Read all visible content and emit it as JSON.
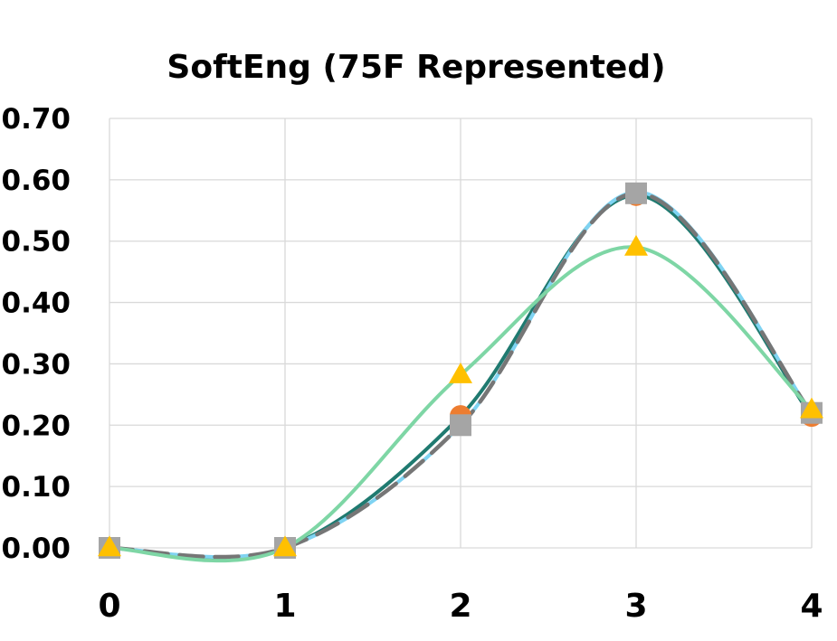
{
  "chart_data": {
    "type": "line",
    "title": "SoftEng (75F Represented)",
    "xlabel": "",
    "ylabel": "",
    "x": [
      0,
      1,
      2,
      3,
      4
    ],
    "xlim": [
      0,
      4
    ],
    "ylim": [
      0,
      0.7
    ],
    "x_ticks": [
      "0",
      "1",
      "2",
      "3",
      "4"
    ],
    "y_ticks": [
      "0.00",
      "0.10",
      "0.20",
      "0.30",
      "0.40",
      "0.50",
      "0.60",
      "0.70"
    ],
    "grid": true,
    "legend": "none",
    "smooth": true,
    "series": [
      {
        "marker": "circle",
        "color": "#ED7D31",
        "line_color": "#1F7A70",
        "line_style": "solid",
        "values": [
          0,
          0,
          0.215,
          0.575,
          0.215
        ]
      },
      {
        "marker": "none",
        "color": "#7FD3F2",
        "line_color": "#7FD3F2",
        "line_style": "solid",
        "values": [
          0,
          0,
          0.2,
          0.58,
          0.22
        ]
      },
      {
        "marker": "square",
        "color": "#A5A5A5",
        "line_color": "#767676",
        "line_style": "dashed",
        "values": [
          0,
          0,
          0.2,
          0.578,
          0.22
        ]
      },
      {
        "marker": "triangle",
        "color": "#FFC000",
        "line_color": "#7ED6A5",
        "line_style": "solid",
        "values": [
          0,
          0,
          0.282,
          0.49,
          0.225
        ]
      }
    ]
  }
}
